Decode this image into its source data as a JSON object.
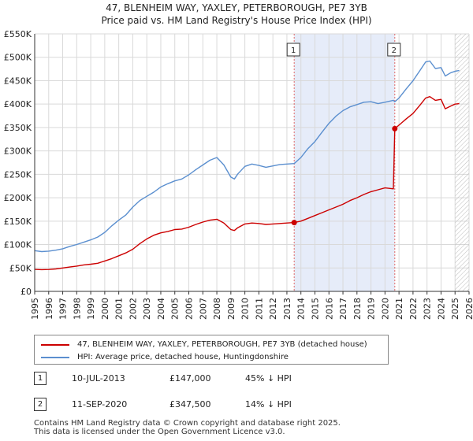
{
  "chart_data": {
    "type": "line",
    "title": "47, BLENHEIM WAY, YAXLEY, PETERBOROUGH, PE7 3YB",
    "subtitle": "Price paid vs. HM Land Registry's House Price Index (HPI)",
    "xlim": [
      1995,
      2026
    ],
    "ylim": [
      0,
      550000
    ],
    "x_ticks": [
      "1995",
      "1996",
      "1997",
      "1998",
      "1999",
      "2000",
      "2001",
      "2002",
      "2003",
      "2004",
      "2005",
      "2006",
      "2007",
      "2008",
      "2009",
      "2010",
      "2011",
      "2012",
      "2013",
      "2014",
      "2015",
      "2016",
      "2017",
      "2018",
      "2019",
      "2020",
      "2021",
      "2022",
      "2023",
      "2024",
      "2025",
      "2026"
    ],
    "y_ticks": [
      {
        "value": 0,
        "label": "£0"
      },
      {
        "value": 50000,
        "label": "£50K"
      },
      {
        "value": 100000,
        "label": "£100K"
      },
      {
        "value": 150000,
        "label": "£150K"
      },
      {
        "value": 200000,
        "label": "£200K"
      },
      {
        "value": 250000,
        "label": "£250K"
      },
      {
        "value": 300000,
        "label": "£300K"
      },
      {
        "value": 350000,
        "label": "£350K"
      },
      {
        "value": 400000,
        "label": "£400K"
      },
      {
        "value": 450000,
        "label": "£450K"
      },
      {
        "value": 500000,
        "label": "£500K"
      },
      {
        "value": 550000,
        "label": "£550K"
      }
    ],
    "grid": true,
    "shaded_region": {
      "from": 2013.52,
      "to": 2020.7
    },
    "future_hatch_from": 2025.0,
    "series": [
      {
        "name": "47, BLENHEIM WAY, YAXLEY, PETERBOROUGH, PE7 3YB (detached house)",
        "color": "#cc0000",
        "x": [
          1995.0,
          1995.5,
          1996.0,
          1996.5,
          1997.0,
          1997.5,
          1998.0,
          1998.5,
          1999.0,
          1999.5,
          2000.0,
          2000.5,
          2001.0,
          2001.5,
          2002.0,
          2002.5,
          2003.0,
          2003.5,
          2004.0,
          2004.5,
          2005.0,
          2005.5,
          2006.0,
          2006.5,
          2007.0,
          2007.5,
          2008.0,
          2008.5,
          2009.0,
          2009.25,
          2009.5,
          2010.0,
          2010.5,
          2011.0,
          2011.5,
          2012.0,
          2012.5,
          2013.0,
          2013.52,
          2014.0,
          2014.5,
          2015.0,
          2015.5,
          2016.0,
          2016.5,
          2017.0,
          2017.5,
          2018.0,
          2018.5,
          2019.0,
          2019.5,
          2020.0,
          2020.6,
          2020.7,
          2021.0,
          2021.5,
          2022.0,
          2022.5,
          2022.9,
          2023.2,
          2023.6,
          2024.0,
          2024.3,
          2024.7,
          2025.0,
          2025.3
        ],
        "y": [
          47000,
          46500,
          46800,
          48000,
          50000,
          52000,
          54000,
          56500,
          58000,
          60000,
          65000,
          70000,
          76000,
          82000,
          90000,
          102000,
          112000,
          120000,
          125000,
          128000,
          132000,
          133000,
          137000,
          143000,
          148000,
          152000,
          154000,
          146000,
          132000,
          130000,
          136000,
          144000,
          146000,
          145000,
          143000,
          144000,
          145000,
          146000,
          147000,
          150000,
          156000,
          162000,
          168000,
          174000,
          180000,
          186000,
          194000,
          200000,
          207000,
          213000,
          217000,
          221000,
          219000,
          347500,
          355000,
          368000,
          380000,
          398000,
          413000,
          416000,
          408000,
          410000,
          390000,
          396000,
          400000,
          401000
        ]
      },
      {
        "name": "HPI: Average price, detached house, Huntingdonshire",
        "color": "#5b8fcf",
        "x": [
          1995.0,
          1995.5,
          1996.0,
          1996.5,
          1997.0,
          1997.5,
          1998.0,
          1998.5,
          1999.0,
          1999.5,
          2000.0,
          2000.5,
          2001.0,
          2001.5,
          2002.0,
          2002.5,
          2003.0,
          2003.5,
          2004.0,
          2004.5,
          2005.0,
          2005.5,
          2006.0,
          2006.5,
          2007.0,
          2007.5,
          2008.0,
          2008.5,
          2009.0,
          2009.25,
          2009.5,
          2010.0,
          2010.5,
          2011.0,
          2011.5,
          2012.0,
          2012.5,
          2013.0,
          2013.52,
          2014.0,
          2014.5,
          2015.0,
          2015.5,
          2016.0,
          2016.5,
          2017.0,
          2017.5,
          2018.0,
          2018.5,
          2019.0,
          2019.5,
          2020.0,
          2020.6,
          2020.7,
          2021.0,
          2021.5,
          2022.0,
          2022.5,
          2022.9,
          2023.2,
          2023.6,
          2024.0,
          2024.3,
          2024.7,
          2025.0,
          2025.3
        ],
        "y": [
          87000,
          85000,
          86000,
          88000,
          91000,
          96000,
          100000,
          105000,
          110000,
          116000,
          126000,
          140000,
          152000,
          163000,
          180000,
          194000,
          203000,
          212000,
          223000,
          230000,
          236000,
          240000,
          249000,
          260000,
          270000,
          280000,
          286000,
          270000,
          244000,
          240000,
          251000,
          267000,
          272000,
          269000,
          265000,
          268000,
          271000,
          272000,
          273000,
          286000,
          305000,
          320000,
          340000,
          359000,
          374000,
          386000,
          394000,
          399000,
          404000,
          405000,
          401000,
          404000,
          408000,
          405000,
          413000,
          432000,
          450000,
          472000,
          490000,
          492000,
          476000,
          478000,
          460000,
          467000,
          470000,
          472000
        ]
      }
    ],
    "markers": [
      {
        "label": "1",
        "x": 2013.52,
        "y": 147000
      },
      {
        "label": "2",
        "x": 2020.7,
        "y": 347500
      }
    ]
  },
  "legend": {
    "series1": "47, BLENHEIM WAY, YAXLEY, PETERBOROUGH, PE7 3YB (detached house)",
    "series2": "HPI: Average price, detached house, Huntingdonshire",
    "series1_color": "#cc0000",
    "series2_color": "#5b8fcf"
  },
  "sales": [
    {
      "num": "1",
      "date": "10-JUL-2013",
      "price": "£147,000",
      "hpi": "45% ↓ HPI"
    },
    {
      "num": "2",
      "date": "11-SEP-2020",
      "price": "£347,500",
      "hpi": "14% ↓ HPI"
    }
  ],
  "footer": {
    "line1": "Contains HM Land Registry data © Crown copyright and database right 2025.",
    "line2": "This data is licensed under the Open Government Licence v3.0."
  }
}
